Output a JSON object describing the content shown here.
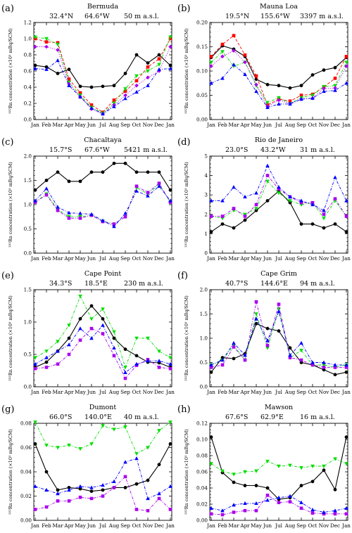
{
  "chart_data": [
    {
      "type": "line",
      "panel_label": "(a)",
      "title": "Bermuda",
      "info": [
        "32.4°N",
        "64.6°W",
        "50 m a.s.l."
      ],
      "ylabel": "²²²Rn concentration (×10³ mBq/SCM)",
      "xlabel": "",
      "x": [
        "Jan",
        "Feb",
        "Mar",
        "Apr",
        "May",
        "Jun",
        "Jul",
        "Aug",
        "Sep",
        "Oct",
        "Nov",
        "Dec",
        "Jan"
      ],
      "ylim": [
        0,
        1.2
      ],
      "yticks": [
        0.0,
        0.2,
        0.4,
        0.6,
        0.8,
        1.0,
        1.2
      ],
      "ytick_labels": [
        "0.0",
        "0.2",
        "0.4",
        "0.6",
        "0.8",
        "1.0",
        "1.2"
      ],
      "grid": false,
      "series": [
        {
          "color": "#000000",
          "marker": "circle",
          "dash": "solid",
          "values": [
            0.67,
            0.65,
            0.57,
            0.62,
            0.41,
            0.4,
            0.41,
            0.42,
            0.57,
            0.8,
            0.7,
            0.8,
            0.67
          ]
        },
        {
          "color": "#ff0000",
          "marker": "square",
          "dash": "dashed",
          "values": [
            1.0,
            0.96,
            0.95,
            0.5,
            0.33,
            0.18,
            0.09,
            0.24,
            0.35,
            0.48,
            0.65,
            0.75,
            1.0
          ]
        },
        {
          "color": "#00dd00",
          "marker": "triangle-down",
          "dash": "dashdot",
          "values": [
            1.02,
            1.0,
            0.93,
            0.46,
            0.3,
            0.15,
            0.08,
            0.2,
            0.38,
            0.54,
            0.6,
            0.68,
            1.02
          ]
        },
        {
          "color": "#aa00ee",
          "marker": "diamond",
          "dash": "dotted",
          "values": [
            0.9,
            0.9,
            0.86,
            0.44,
            0.28,
            0.13,
            0.07,
            0.18,
            0.3,
            0.42,
            0.52,
            0.6,
            0.9
          ]
        },
        {
          "color": "#0000ff",
          "marker": "triangle-up",
          "dash": "dashdot",
          "values": [
            0.63,
            0.62,
            0.73,
            0.42,
            0.28,
            0.14,
            0.07,
            0.16,
            0.26,
            0.34,
            0.42,
            0.62,
            0.63
          ]
        }
      ]
    },
    {
      "type": "line",
      "panel_label": "(b)",
      "title": "Mauna Loa",
      "info": [
        "19.5°N",
        "155.6°W",
        "3397 m a.s.l."
      ],
      "ylabel": "²²²Rn concentration (×10³ mBq/SCM)",
      "xlabel": "",
      "x": [
        "Jan",
        "Feb",
        "Mar",
        "Apr",
        "May",
        "Jun",
        "Jul",
        "Aug",
        "Sep",
        "Oct",
        "Nov",
        "Dec",
        "Jan"
      ],
      "ylim": [
        0,
        0.2
      ],
      "yticks": [
        0.0,
        0.05,
        0.1,
        0.15,
        0.2
      ],
      "ytick_labels": [
        "0.00",
        "0.05",
        "0.10",
        "0.15",
        "0.20"
      ],
      "grid": false,
      "series": [
        {
          "color": "#000000",
          "marker": "circle",
          "dash": "solid",
          "values": [
            0.128,
            0.152,
            0.145,
            0.13,
            0.083,
            0.072,
            0.07,
            0.065,
            0.07,
            0.092,
            0.102,
            0.107,
            0.128
          ]
        },
        {
          "color": "#ff0000",
          "marker": "square",
          "dash": "dashed",
          "values": [
            0.13,
            0.155,
            0.173,
            0.133,
            0.09,
            0.03,
            0.042,
            0.038,
            0.05,
            0.052,
            0.067,
            0.085,
            0.13
          ]
        },
        {
          "color": "#00dd00",
          "marker": "triangle-down",
          "dash": "dashdot",
          "values": [
            0.118,
            0.14,
            0.11,
            0.118,
            0.07,
            0.035,
            0.045,
            0.033,
            0.045,
            0.05,
            0.068,
            0.07,
            0.118
          ]
        },
        {
          "color": "#aa00ee",
          "marker": "diamond",
          "dash": "dotted",
          "values": [
            0.11,
            0.13,
            0.142,
            0.118,
            0.072,
            0.027,
            0.04,
            0.033,
            0.042,
            0.044,
            0.064,
            0.065,
            0.11
          ]
        },
        {
          "color": "#0000ff",
          "marker": "triangle-up",
          "dash": "dashdot",
          "values": [
            0.075,
            0.085,
            0.113,
            0.093,
            0.058,
            0.025,
            0.032,
            0.032,
            0.042,
            0.044,
            0.058,
            0.06,
            0.075
          ]
        }
      ]
    },
    {
      "type": "line",
      "panel_label": "(c)",
      "title": "Chacaltaya",
      "info": [
        "15.7°S",
        "67.6°W",
        "5421 m a.s.l."
      ],
      "ylabel": "²²²Rn concentration (×10³ mBq/SCM)",
      "xlabel": "",
      "x": [
        "Jan",
        "Feb",
        "Mar",
        "Apr",
        "May",
        "Jun",
        "Jul",
        "Aug",
        "Sep",
        "Oct",
        "Nov",
        "Dec",
        "Jan"
      ],
      "ylim": [
        0,
        2.0
      ],
      "yticks": [
        0.0,
        0.5,
        1.0,
        1.5,
        2.0
      ],
      "ytick_labels": [
        "0.0",
        "0.5",
        "1.0",
        "1.5",
        "2.0"
      ],
      "grid": false,
      "series": [
        {
          "color": "#000000",
          "marker": "circle",
          "dash": "solid",
          "values": [
            1.3,
            1.5,
            1.67,
            1.48,
            1.48,
            1.67,
            1.67,
            1.85,
            1.85,
            1.67,
            1.67,
            1.67,
            1.3
          ]
        },
        {
          "color": "#00dd00",
          "marker": "triangle-down",
          "dash": "dashdot",
          "values": [
            1.05,
            1.22,
            0.9,
            0.75,
            0.75,
            0.78,
            0.66,
            0.6,
            0.75,
            1.35,
            1.22,
            1.42,
            1.05
          ]
        },
        {
          "color": "#aa00ee",
          "marker": "square",
          "dash": "dashdot",
          "values": [
            1.05,
            1.2,
            0.88,
            0.72,
            0.72,
            0.78,
            0.65,
            0.6,
            0.75,
            1.38,
            1.25,
            1.44,
            1.05
          ]
        },
        {
          "color": "#0000ff",
          "marker": "triangle-up",
          "dash": "dashdot",
          "values": [
            1.08,
            1.33,
            0.95,
            0.83,
            0.82,
            0.8,
            0.67,
            0.55,
            0.82,
            1.28,
            1.18,
            1.38,
            1.08
          ]
        }
      ]
    },
    {
      "type": "line",
      "panel_label": "(d)",
      "title": "Rio de Janeiro",
      "info": [
        "23.0°S",
        "43.2°W",
        "31 m a.s.l."
      ],
      "ylabel": "²²²Rn concentration (×10³ mBq/SCM)",
      "xlabel": "",
      "x": [
        "Jan",
        "Feb",
        "Mar",
        "Apr",
        "May",
        "Jun",
        "Jul",
        "Aug",
        "Sep",
        "Oct",
        "Nov",
        "Dec",
        "Jan"
      ],
      "ylim": [
        0,
        5
      ],
      "yticks": [
        0,
        1,
        2,
        3,
        4,
        5
      ],
      "ytick_labels": [
        "0",
        "1",
        "2",
        "3",
        "4",
        "5"
      ],
      "grid": false,
      "series": [
        {
          "color": "#000000",
          "marker": "circle",
          "dash": "solid",
          "values": [
            1.1,
            1.5,
            1.3,
            1.7,
            2.2,
            2.7,
            3.2,
            2.6,
            1.5,
            1.5,
            1.3,
            1.5,
            1.1
          ]
        },
        {
          "color": "#00dd00",
          "marker": "triangle-down",
          "dash": "dashdot",
          "values": [
            1.9,
            1.8,
            2.2,
            2.0,
            2.3,
            3.7,
            3.1,
            2.7,
            2.5,
            2.6,
            1.8,
            2.7,
            1.9
          ]
        },
        {
          "color": "#aa00ee",
          "marker": "square",
          "dash": "dashdot",
          "values": [
            1.9,
            1.9,
            2.3,
            1.9,
            2.5,
            4.0,
            3.3,
            2.9,
            2.6,
            2.6,
            2.0,
            2.8,
            1.9
          ]
        },
        {
          "color": "#0000ff",
          "marker": "triangle-up",
          "dash": "dashdot",
          "values": [
            2.7,
            2.7,
            3.4,
            2.9,
            3.1,
            4.5,
            3.4,
            2.9,
            2.7,
            2.5,
            2.2,
            3.9,
            2.7
          ]
        }
      ]
    },
    {
      "type": "line",
      "panel_label": "(e)",
      "title": "Cape Point",
      "info": [
        "34.3°S",
        "18.5°E",
        "230 m a.s.l."
      ],
      "ylabel": "²²²Rn concentration (×10³ mBq/SCM)",
      "xlabel": "",
      "x": [
        "Jan",
        "Feb",
        "Mar",
        "Apr",
        "May",
        "Jun",
        "Jul",
        "Aug",
        "Sep",
        "Oct",
        "Nov",
        "Dec",
        "Jan"
      ],
      "ylim": [
        0,
        1.5
      ],
      "yticks": [
        0.0,
        0.5,
        1.0,
        1.5
      ],
      "ytick_labels": [
        "0.0",
        "0.5",
        "1.0",
        "1.5"
      ],
      "grid": false,
      "series": [
        {
          "color": "#000000",
          "marker": "circle",
          "dash": "solid",
          "values": [
            0.3,
            0.38,
            0.55,
            0.75,
            1.05,
            1.25,
            1.05,
            0.75,
            0.58,
            0.48,
            0.38,
            0.37,
            0.3
          ]
        },
        {
          "color": "#00dd00",
          "marker": "triangle-down",
          "dash": "dashdot",
          "values": [
            0.45,
            0.55,
            0.7,
            0.95,
            1.4,
            1.05,
            1.2,
            0.85,
            0.3,
            0.75,
            0.75,
            0.55,
            0.45
          ]
        },
        {
          "color": "#aa00ee",
          "marker": "square",
          "dash": "dashdot",
          "values": [
            0.28,
            0.3,
            0.35,
            0.5,
            0.72,
            0.9,
            0.82,
            0.48,
            0.13,
            0.33,
            0.42,
            0.3,
            0.28
          ]
        },
        {
          "color": "#0000ff",
          "marker": "triangle-up",
          "dash": "dashdot",
          "values": [
            0.35,
            0.45,
            0.55,
            0.65,
            0.9,
            0.75,
            0.95,
            0.6,
            0.22,
            0.35,
            0.4,
            0.4,
            0.35
          ]
        }
      ]
    },
    {
      "type": "line",
      "panel_label": "(f)",
      "title": "Cape Grim",
      "info": [
        "40.7°S",
        "144.6°E",
        "94 m a.s.l."
      ],
      "ylabel": "²²²Rn concentration (×10³ mBq/SCM)",
      "xlabel": "",
      "x": [
        "Jan",
        "Feb",
        "Mar",
        "Apr",
        "May",
        "Jun",
        "Jul",
        "Aug",
        "Sep",
        "Oct",
        "Nov",
        "Dec",
        "Jan"
      ],
      "ylim": [
        0,
        2.0
      ],
      "yticks": [
        0.0,
        0.5,
        1.0,
        1.5,
        2.0
      ],
      "ytick_labels": [
        "0.0",
        "0.5",
        "1.0",
        "1.5",
        "2.0"
      ],
      "grid": false,
      "series": [
        {
          "color": "#000000",
          "marker": "circle",
          "dash": "solid",
          "values": [
            0.3,
            0.6,
            0.58,
            0.68,
            1.3,
            1.2,
            1.15,
            0.8,
            0.5,
            0.45,
            0.35,
            0.25,
            0.3
          ]
        },
        {
          "color": "#00dd00",
          "marker": "triangle-down",
          "dash": "dashdot",
          "values": [
            0.45,
            0.55,
            0.85,
            0.55,
            1.5,
            0.8,
            1.6,
            0.6,
            0.75,
            0.45,
            0.45,
            0.4,
            0.45
          ]
        },
        {
          "color": "#aa00ee",
          "marker": "square",
          "dash": "dashdot",
          "values": [
            0.4,
            0.45,
            0.82,
            0.55,
            1.75,
            0.85,
            1.7,
            0.6,
            0.55,
            0.45,
            0.4,
            0.4,
            0.4
          ]
        },
        {
          "color": "#0000ff",
          "marker": "triangle-up",
          "dash": "dashdot",
          "values": [
            0.45,
            0.55,
            0.9,
            0.65,
            1.4,
            0.95,
            1.55,
            0.65,
            0.9,
            0.5,
            0.5,
            0.45,
            0.45
          ]
        }
      ]
    },
    {
      "type": "line",
      "panel_label": "(g)",
      "title": "Dumont",
      "info": [
        "66.0°S",
        "140.0°E",
        "40 m a.s.l."
      ],
      "ylabel": "²²²Rn concentration (×10³ mBq/SCM)",
      "xlabel": "",
      "x": [
        "Jan",
        "Feb",
        "Mar",
        "Apr",
        "May",
        "Jun",
        "Jul",
        "Aug",
        "Sep",
        "Oct",
        "Nov",
        "Dec",
        "Jan"
      ],
      "ylim": [
        0,
        0.08
      ],
      "yticks": [
        0.0,
        0.02,
        0.04,
        0.06,
        0.08
      ],
      "ytick_labels": [
        "0.00",
        "0.02",
        "0.04",
        "0.06",
        "0.08"
      ],
      "grid": false,
      "series": [
        {
          "color": "#000000",
          "marker": "circle",
          "dash": "solid",
          "values": [
            0.063,
            0.04,
            0.025,
            0.027,
            0.026,
            0.024,
            0.025,
            0.027,
            0.027,
            0.03,
            0.033,
            0.046,
            0.063
          ]
        },
        {
          "color": "#00dd00",
          "marker": "triangle-down",
          "dash": "dashdot",
          "values": [
            0.081,
            0.062,
            0.06,
            0.062,
            0.059,
            0.063,
            0.078,
            0.075,
            0.077,
            0.055,
            0.06,
            0.074,
            0.081
          ]
        },
        {
          "color": "#aa00ee",
          "marker": "square",
          "dash": "dashdot",
          "values": [
            0.009,
            0.011,
            0.016,
            0.016,
            0.019,
            0.018,
            0.02,
            0.027,
            0.036,
            0.009,
            0.008,
            0.018,
            0.009
          ]
        },
        {
          "color": "#0000ff",
          "marker": "triangle-up",
          "dash": "dashdot",
          "values": [
            0.028,
            0.025,
            0.022,
            0.025,
            0.028,
            0.027,
            0.029,
            0.032,
            0.048,
            0.051,
            0.018,
            0.022,
            0.028
          ]
        }
      ]
    },
    {
      "type": "line",
      "panel_label": "(h)",
      "title": "Mawson",
      "info": [
        "67.6°S",
        "62.9°E",
        "16 m a.s.l."
      ],
      "ylabel": "²²²Rn concentration (×10³ mBq/SCM)",
      "xlabel": "",
      "x": [
        "Jan",
        "Feb",
        "Mar",
        "Apr",
        "May",
        "Jun",
        "Jul",
        "Aug",
        "Sep",
        "Oct",
        "Nov",
        "Dec",
        "Jan"
      ],
      "ylim": [
        0,
        0.12
      ],
      "yticks": [
        0.0,
        0.02,
        0.04,
        0.06,
        0.08,
        0.1,
        0.12
      ],
      "ytick_labels": [
        "0.00",
        "0.02",
        "0.04",
        "0.06",
        "0.08",
        "0.10",
        "0.12"
      ],
      "grid": false,
      "series": [
        {
          "color": "#000000",
          "marker": "circle",
          "dash": "solid",
          "values": [
            0.103,
            0.059,
            0.047,
            0.043,
            0.043,
            0.04,
            0.026,
            0.028,
            0.043,
            0.048,
            0.062,
            0.038,
            0.103
          ]
        },
        {
          "color": "#00dd00",
          "marker": "triangle-down",
          "dash": "dashdot",
          "values": [
            0.07,
            0.061,
            0.057,
            0.06,
            0.061,
            0.073,
            0.067,
            0.068,
            0.065,
            0.067,
            0.067,
            0.076,
            0.07
          ]
        },
        {
          "color": "#aa00ee",
          "marker": "square",
          "dash": "dashdot",
          "values": [
            0.008,
            0.007,
            0.01,
            0.012,
            0.012,
            0.031,
            0.022,
            0.023,
            0.015,
            0.009,
            0.008,
            0.008,
            0.008
          ]
        },
        {
          "color": "#0000ff",
          "marker": "triangle-up",
          "dash": "dashdot",
          "values": [
            0.015,
            0.012,
            0.019,
            0.021,
            0.021,
            0.025,
            0.028,
            0.03,
            0.022,
            0.013,
            0.01,
            0.012,
            0.015
          ]
        }
      ]
    }
  ]
}
